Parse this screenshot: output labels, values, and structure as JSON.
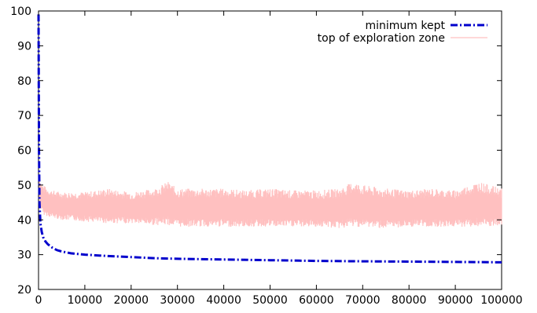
{
  "chart_data": {
    "type": "line",
    "title": "",
    "xlabel": "",
    "ylabel": "",
    "xlim": [
      0,
      100000
    ],
    "ylim": [
      20,
      100
    ],
    "xticks": [
      0,
      10000,
      20000,
      30000,
      40000,
      50000,
      60000,
      70000,
      80000,
      90000,
      100000
    ],
    "yticks": [
      20,
      30,
      40,
      50,
      60,
      70,
      80,
      90,
      100
    ],
    "xtick_labels": [
      "0",
      "10000",
      "20000",
      "30000",
      "40000",
      "50000",
      "60000",
      "70000",
      "80000",
      "90000",
      "100000"
    ],
    "ytick_labels": [
      "20",
      "30",
      "40",
      "50",
      "60",
      "70",
      "80",
      "90",
      "100"
    ],
    "grid": false,
    "legend_position": "top-right",
    "series": [
      {
        "name": "minimum kept",
        "color": "#0000cc",
        "style": "dash-dot",
        "x": [
          0,
          100,
          200,
          400,
          700,
          1000,
          1500,
          2000,
          3000,
          4000,
          5000,
          7000,
          10000,
          15000,
          20000,
          25000,
          30000,
          40000,
          50000,
          60000,
          70000,
          80000,
          90000,
          100000
        ],
        "y": [
          99,
          60,
          45,
          39,
          36.5,
          35,
          33.8,
          33,
          32,
          31.3,
          30.9,
          30.4,
          30.0,
          29.6,
          29.3,
          29.0,
          28.8,
          28.6,
          28.4,
          28.2,
          28.1,
          28.0,
          27.9,
          27.8
        ]
      },
      {
        "name": "top of exploration zone",
        "color": "#ffc0c0",
        "style": "solid",
        "x": [
          0,
          200,
          500,
          1000,
          2000,
          3000,
          5000,
          10000,
          15000,
          20000,
          25000,
          28000,
          30000,
          35000,
          40000,
          45000,
          50000,
          55000,
          60000,
          65000,
          68000,
          70000,
          75000,
          80000,
          85000,
          90000,
          95000,
          100000
        ],
        "y_low": [
          99,
          46,
          43,
          41.5,
          41,
          40.5,
          40,
          39.5,
          39,
          39,
          38.5,
          38.5,
          38,
          38,
          38,
          38,
          38,
          38,
          38,
          37.5,
          38,
          38,
          37.5,
          38,
          38,
          38,
          38,
          38
        ],
        "y_high": [
          99,
          52,
          51,
          50,
          49,
          48.5,
          48,
          48,
          49,
          48,
          49,
          51,
          49,
          49,
          49,
          48.5,
          49,
          48.5,
          48.5,
          49,
          51,
          50,
          49,
          48.5,
          49,
          48.5,
          51,
          49
        ]
      }
    ]
  }
}
